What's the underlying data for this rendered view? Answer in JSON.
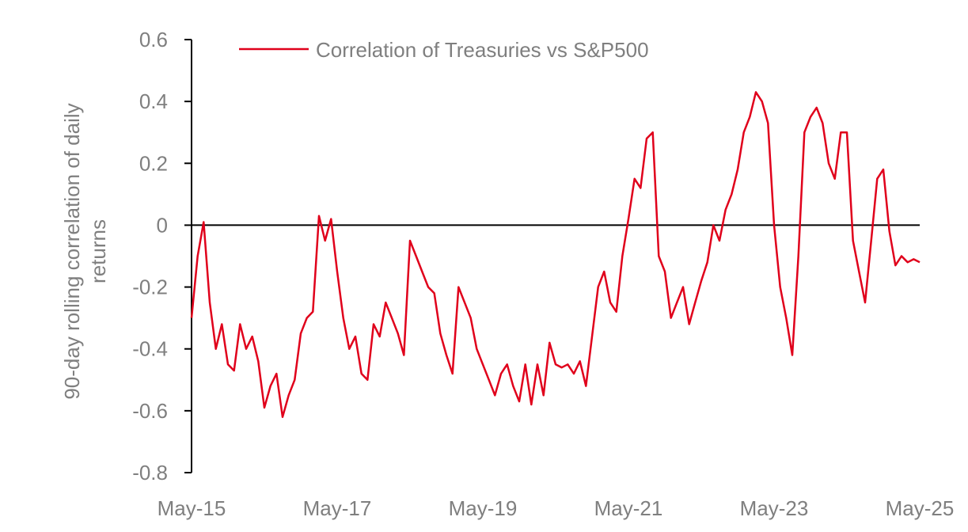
{
  "chart_data": {
    "type": "line",
    "ylabel": "90-day rolling correlation of daily returns",
    "ylim": [
      -0.8,
      0.6
    ],
    "y_ticks": [
      "0.6",
      "0.4",
      "0.2",
      "0",
      "-0.2",
      "-0.4",
      "-0.6",
      "-0.8"
    ],
    "x_ticks": [
      "May-15",
      "May-17",
      "May-19",
      "May-21",
      "May-23",
      "May-25"
    ],
    "xlim": [
      "2015-05",
      "2025-05"
    ],
    "grid": false,
    "zero_line": true,
    "legend_position": "top-left",
    "series": [
      {
        "name": "Correlation of Treasuries vs S&P500",
        "color": "#e0001b",
        "x": [
          "2015-05",
          "2015-06",
          "2015-07",
          "2015-08",
          "2015-09",
          "2015-10",
          "2015-11",
          "2015-12",
          "2016-01",
          "2016-02",
          "2016-03",
          "2016-04",
          "2016-05",
          "2016-06",
          "2016-07",
          "2016-08",
          "2016-09",
          "2016-10",
          "2016-11",
          "2016-12",
          "2017-01",
          "2017-02",
          "2017-03",
          "2017-04",
          "2017-05",
          "2017-06",
          "2017-07",
          "2017-08",
          "2017-09",
          "2017-10",
          "2017-11",
          "2017-12",
          "2018-01",
          "2018-02",
          "2018-03",
          "2018-04",
          "2018-05",
          "2018-06",
          "2018-07",
          "2018-08",
          "2018-09",
          "2018-10",
          "2018-11",
          "2018-12",
          "2019-01",
          "2019-02",
          "2019-03",
          "2019-04",
          "2019-05",
          "2019-06",
          "2019-07",
          "2019-08",
          "2019-09",
          "2019-10",
          "2019-11",
          "2019-12",
          "2020-01",
          "2020-02",
          "2020-03",
          "2020-04",
          "2020-05",
          "2020-06",
          "2020-07",
          "2020-08",
          "2020-09",
          "2020-10",
          "2020-11",
          "2020-12",
          "2021-01",
          "2021-02",
          "2021-03",
          "2021-04",
          "2021-05",
          "2021-06",
          "2021-07",
          "2021-08",
          "2021-09",
          "2021-10",
          "2021-11",
          "2021-12",
          "2022-01",
          "2022-02",
          "2022-03",
          "2022-04",
          "2022-05",
          "2022-06",
          "2022-07",
          "2022-08",
          "2022-09",
          "2022-10",
          "2022-11",
          "2022-12",
          "2023-01",
          "2023-02",
          "2023-03",
          "2023-04",
          "2023-05",
          "2023-06",
          "2023-07",
          "2023-08",
          "2023-09",
          "2023-10",
          "2023-11",
          "2023-12",
          "2024-01",
          "2024-02",
          "2024-03",
          "2024-04",
          "2024-05",
          "2024-06",
          "2024-07",
          "2024-08",
          "2024-09",
          "2024-10",
          "2024-11",
          "2024-12",
          "2025-01",
          "2025-02",
          "2025-03",
          "2025-04",
          "2025-05"
        ],
        "values": [
          -0.3,
          -0.1,
          0.01,
          -0.25,
          -0.4,
          -0.32,
          -0.45,
          -0.47,
          -0.32,
          -0.4,
          -0.36,
          -0.44,
          -0.59,
          -0.52,
          -0.48,
          -0.62,
          -0.55,
          -0.5,
          -0.35,
          -0.3,
          -0.28,
          0.03,
          -0.05,
          0.02,
          -0.15,
          -0.3,
          -0.4,
          -0.36,
          -0.48,
          -0.5,
          -0.32,
          -0.36,
          -0.25,
          -0.3,
          -0.35,
          -0.42,
          -0.05,
          -0.1,
          -0.15,
          -0.2,
          -0.22,
          -0.35,
          -0.42,
          -0.48,
          -0.2,
          -0.25,
          -0.3,
          -0.4,
          -0.45,
          -0.5,
          -0.55,
          -0.48,
          -0.45,
          -0.52,
          -0.57,
          -0.45,
          -0.58,
          -0.45,
          -0.55,
          -0.38,
          -0.45,
          -0.46,
          -0.45,
          -0.48,
          -0.44,
          -0.52,
          -0.36,
          -0.2,
          -0.15,
          -0.25,
          -0.28,
          -0.1,
          0.02,
          0.15,
          0.12,
          0.28,
          0.3,
          -0.1,
          -0.15,
          -0.3,
          -0.25,
          -0.2,
          -0.32,
          -0.25,
          -0.18,
          -0.12,
          0.0,
          -0.05,
          0.05,
          0.1,
          0.18,
          0.3,
          0.35,
          0.43,
          0.4,
          0.33,
          0.0,
          -0.2,
          -0.3,
          -0.42,
          -0.1,
          0.3,
          0.35,
          0.38,
          0.33,
          0.2,
          0.15,
          0.3,
          0.3,
          -0.05,
          -0.15,
          -0.25,
          -0.05,
          0.15,
          0.18,
          -0.02,
          -0.13,
          -0.1,
          -0.12,
          -0.11,
          -0.12
        ]
      }
    ]
  }
}
